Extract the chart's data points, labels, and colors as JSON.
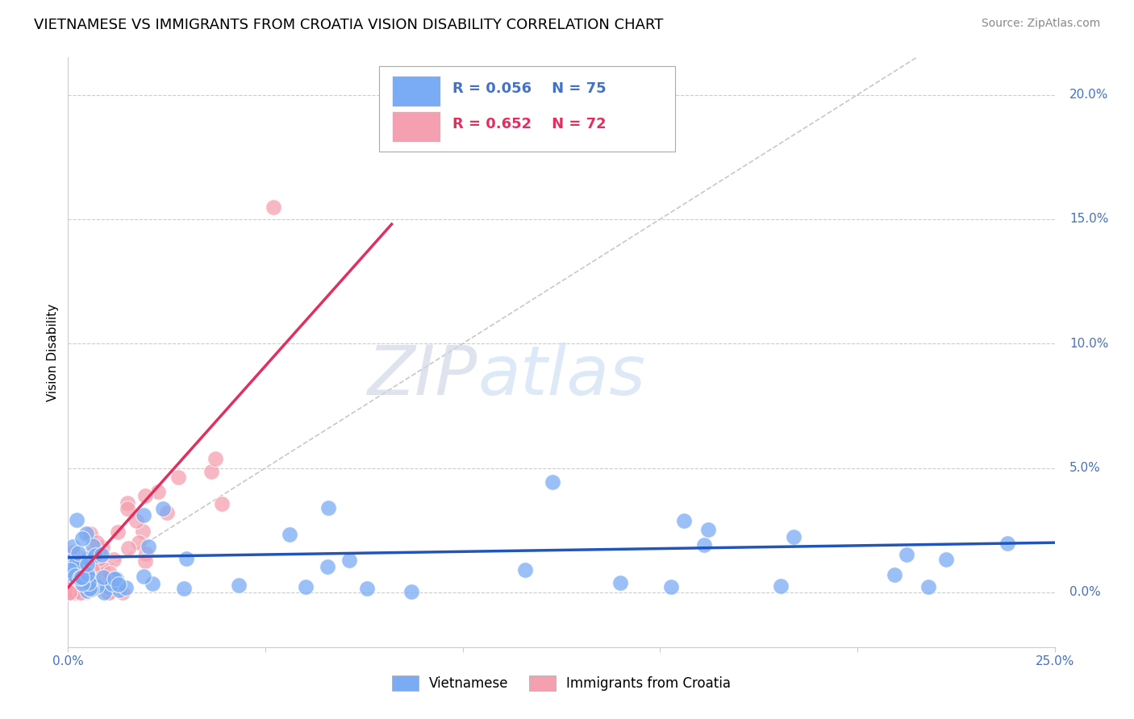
{
  "title": "VIETNAMESE VS IMMIGRANTS FROM CROATIA VISION DISABILITY CORRELATION CHART",
  "source": "Source: ZipAtlas.com",
  "ylabel": "Vision Disability",
  "xlim": [
    0.0,
    0.25
  ],
  "ylim": [
    -0.022,
    0.215
  ],
  "ytick_positions": [
    0.0,
    0.05,
    0.1,
    0.15,
    0.2
  ],
  "ytick_labels": [
    "0.0%",
    "5.0%",
    "10.0%",
    "15.0%",
    "20.0%"
  ],
  "grid_color": "#cccccc",
  "background_color": "#ffffff",
  "title_fontsize": 13,
  "axis_label_color": "#4472c4",
  "legend_R1": "R = 0.056",
  "legend_N1": "N = 75",
  "legend_R2": "R = 0.652",
  "legend_N2": "N = 72",
  "blue_scatter_color": "#7aabf5",
  "pink_scatter_color": "#f5a0b0",
  "blue_line_color": "#2255bb",
  "pink_line_color": "#e03060",
  "ref_line_color": "#c8c8c8",
  "watermark_color": "#cfe0f5",
  "legend_text_blue": "#4472c4",
  "legend_text_pink": "#e03060"
}
